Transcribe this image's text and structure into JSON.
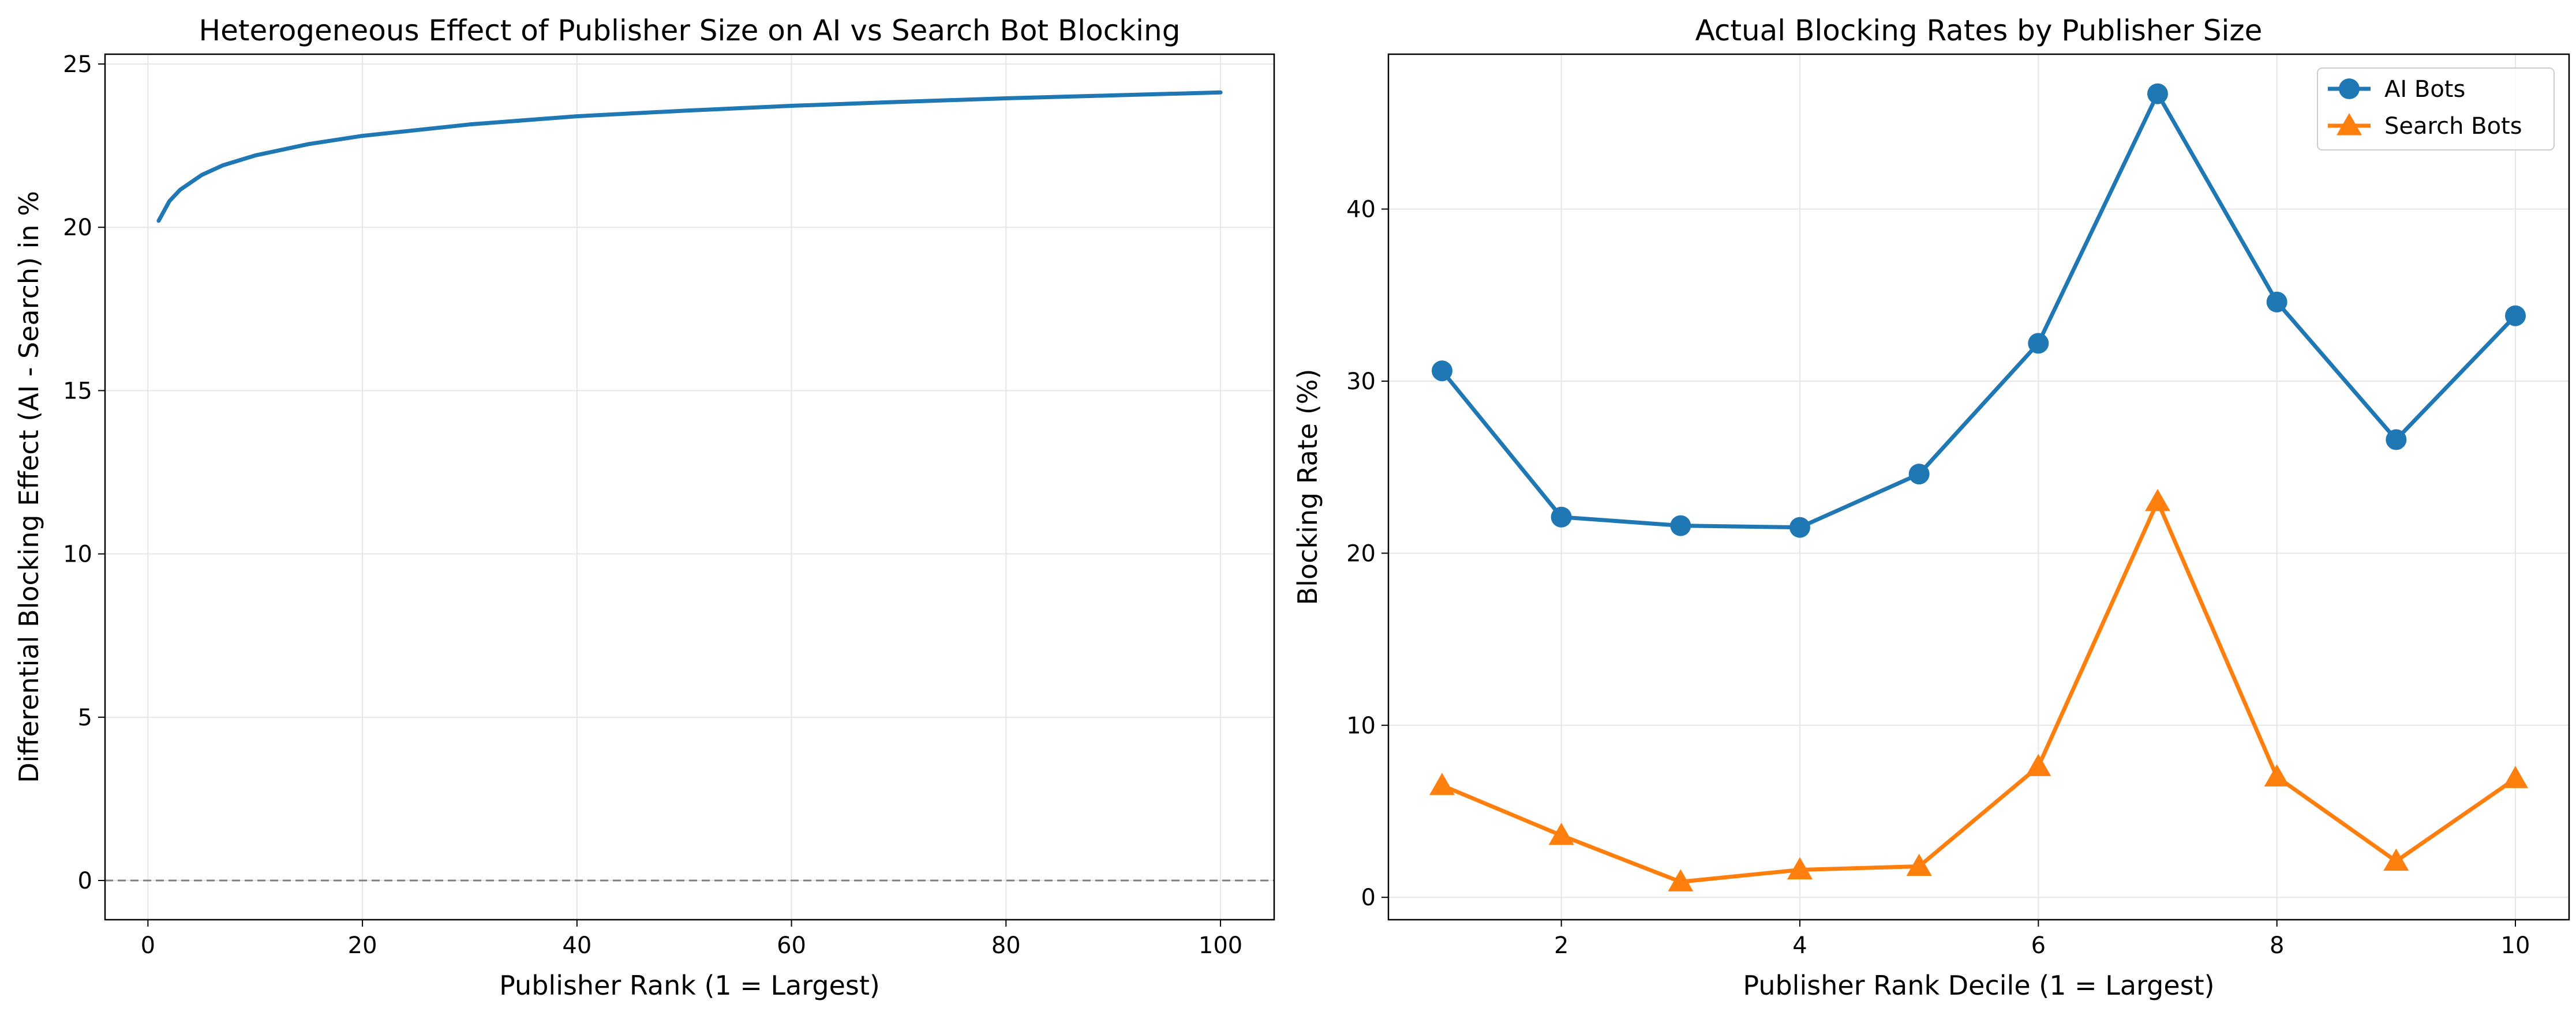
{
  "colors": {
    "blue": "#1f77b4",
    "orange": "#ff7f0e",
    "grid": "#e6e6e6",
    "zero_line": "#808080"
  },
  "chart_data": [
    {
      "type": "line",
      "title": "Heterogeneous Effect of Publisher Size on AI vs Search Bot Blocking",
      "xlabel": "Publisher Rank (1 = Largest)",
      "ylabel": "Differential Blocking Effect (AI - Search) in %",
      "xlim": [
        -4,
        105
      ],
      "ylim": [
        -1.2,
        25.3
      ],
      "xticks": [
        0,
        20,
        40,
        60,
        80,
        100
      ],
      "yticks": [
        0,
        5,
        10,
        15,
        20,
        25
      ],
      "grid": true,
      "reference_line": {
        "y": 0,
        "style": "dashed"
      },
      "series": [
        {
          "x": [
            1,
            2,
            3,
            5,
            7,
            10,
            15,
            20,
            30,
            40,
            50,
            60,
            70,
            80,
            90,
            100
          ],
          "y": [
            20.2,
            20.8,
            21.15,
            21.6,
            21.9,
            22.2,
            22.55,
            22.8,
            23.15,
            23.4,
            23.57,
            23.72,
            23.84,
            23.95,
            24.04,
            24.13
          ],
          "color": "blue"
        }
      ]
    },
    {
      "type": "line",
      "title": "Actual Blocking Rates by Publisher Size",
      "xlabel": "Publisher Rank Decile (1 = Largest)",
      "ylabel": "Blocking Rate (%)",
      "xlim": [
        0.55,
        10.45
      ],
      "ylim": [
        -1.3,
        49
      ],
      "xticks": [
        2,
        4,
        6,
        8,
        10
      ],
      "yticks": [
        0,
        10,
        20,
        30,
        40
      ],
      "grid": true,
      "legend_position": "top-right",
      "x": [
        1,
        2,
        3,
        4,
        5,
        6,
        7,
        8,
        9,
        10
      ],
      "series": [
        {
          "name": "AI Bots",
          "values": [
            30.6,
            22.1,
            21.6,
            21.5,
            24.6,
            32.2,
            46.7,
            34.6,
            26.6,
            33.8
          ],
          "color": "blue",
          "marker": "circle"
        },
        {
          "name": "Search Bots",
          "values": [
            6.5,
            3.6,
            0.9,
            1.6,
            1.8,
            7.6,
            23.0,
            7.0,
            2.1,
            6.9
          ],
          "color": "orange",
          "marker": "triangle"
        }
      ]
    }
  ]
}
